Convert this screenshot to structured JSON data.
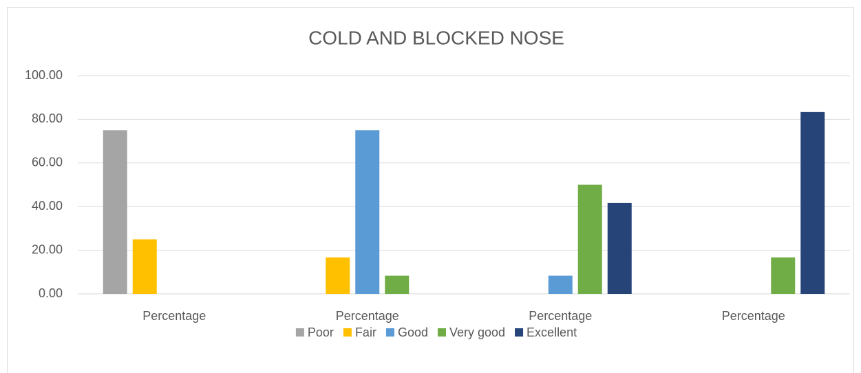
{
  "chart_data": {
    "type": "bar",
    "title": "COLD AND BLOCKED NOSE",
    "categories": [
      "Percentage",
      "Percentage",
      "Percentage",
      "Percentage"
    ],
    "series": [
      {
        "name": "Poor",
        "color": "#a5a5a5",
        "values": [
          75,
          0,
          0,
          0
        ]
      },
      {
        "name": "Fair",
        "color": "#ffc000",
        "values": [
          25,
          16.67,
          0,
          0
        ]
      },
      {
        "name": "Good",
        "color": "#5b9bd5",
        "values": [
          0,
          75,
          8.33,
          0
        ]
      },
      {
        "name": "Very good",
        "color": "#70ad47",
        "values": [
          0,
          8.33,
          50,
          16.67
        ]
      },
      {
        "name": "Excellent",
        "color": "#264478",
        "values": [
          0,
          0,
          41.67,
          83.33
        ]
      }
    ],
    "ylim": [
      0,
      100
    ],
    "yticks": [
      {
        "value": 0,
        "label": "0.00"
      },
      {
        "value": 20,
        "label": "20.00"
      },
      {
        "value": 40,
        "label": "40.00"
      },
      {
        "value": 60,
        "label": "60.00"
      },
      {
        "value": 80,
        "label": "80.00"
      },
      {
        "value": 100,
        "label": "100.00"
      }
    ],
    "grid": true,
    "legend": "bottom"
  }
}
